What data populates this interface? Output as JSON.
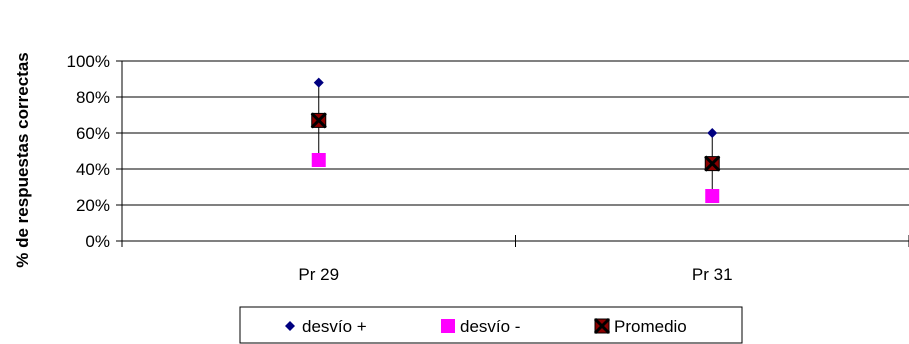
{
  "chart_data": {
    "type": "scatter",
    "title": "",
    "xlabel": "",
    "ylabel": "% de respuestas correctas",
    "categories": [
      "Pr 29",
      "Pr 31"
    ],
    "ylim": [
      0,
      100
    ],
    "yticks": [
      0,
      20,
      40,
      60,
      80,
      100
    ],
    "ytick_labels": [
      "0%",
      "20%",
      "40%",
      "60%",
      "80%",
      "100%"
    ],
    "grid": true,
    "legend_position": "bottom",
    "series": [
      {
        "name": "desvío +",
        "marker": "diamond",
        "color": "#000080",
        "values": [
          88,
          60
        ]
      },
      {
        "name": "desvío -",
        "marker": "square",
        "color": "#ff00ff",
        "values": [
          45,
          25
        ]
      },
      {
        "name": "Promedio",
        "marker": "x-square",
        "color": "#8b0000",
        "values": [
          67,
          43
        ]
      }
    ]
  }
}
